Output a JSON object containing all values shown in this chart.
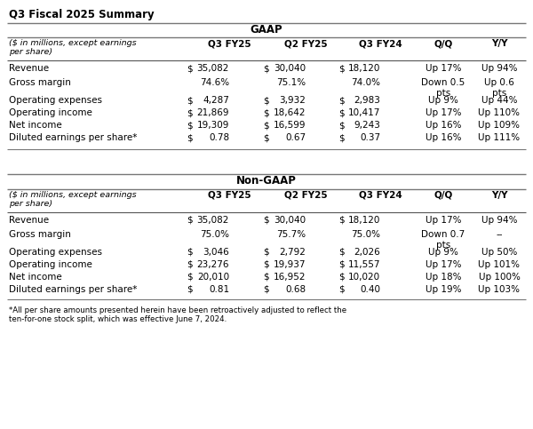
{
  "title": "Q3 Fiscal 2025 Summary",
  "bg_color": "#ffffff",
  "section1_header": "GAAP",
  "section2_header": "Non-GAAP",
  "col_header_italic": "($ in millions, except earnings\nper share)",
  "col_headers": [
    "Q3 FY25",
    "Q2 FY25",
    "Q3 FY24",
    "Q/Q",
    "Y/Y"
  ],
  "gaap_rows": [
    {
      "label": "Revenue",
      "has_dollar": true,
      "vals": [
        "35,082",
        "30,040",
        "18,120"
      ],
      "qoq": "Up 17%",
      "yoy": "Up 94%"
    },
    {
      "label": "Gross margin",
      "has_dollar": false,
      "vals": [
        "74.6%",
        "75.1%",
        "74.0%"
      ],
      "qoq": "Down 0.5\npts",
      "yoy": "Up 0.6\npts"
    },
    {
      "label": "Operating expenses",
      "has_dollar": true,
      "vals": [
        "4,287",
        "3,932",
        "2,983"
      ],
      "qoq": "Up 9%",
      "yoy": "Up 44%"
    },
    {
      "label": "Operating income",
      "has_dollar": true,
      "vals": [
        "21,869",
        "18,642",
        "10,417"
      ],
      "qoq": "Up 17%",
      "yoy": "Up 110%"
    },
    {
      "label": "Net income",
      "has_dollar": true,
      "vals": [
        "19,309",
        "16,599",
        "9,243"
      ],
      "qoq": "Up 16%",
      "yoy": "Up 109%"
    },
    {
      "label": "Diluted earnings per share*",
      "has_dollar": true,
      "vals": [
        "0.78",
        "0.67",
        "0.37"
      ],
      "qoq": "Up 16%",
      "yoy": "Up 111%"
    }
  ],
  "nongaap_rows": [
    {
      "label": "Revenue",
      "has_dollar": true,
      "vals": [
        "35,082",
        "30,040",
        "18,120"
      ],
      "qoq": "Up 17%",
      "yoy": "Up 94%"
    },
    {
      "label": "Gross margin",
      "has_dollar": false,
      "vals": [
        "75.0%",
        "75.7%",
        "75.0%"
      ],
      "qoq": "Down 0.7\npts",
      "yoy": "--"
    },
    {
      "label": "Operating expenses",
      "has_dollar": true,
      "vals": [
        "3,046",
        "2,792",
        "2,026"
      ],
      "qoq": "Up 9%",
      "yoy": "Up 50%"
    },
    {
      "label": "Operating income",
      "has_dollar": true,
      "vals": [
        "23,276",
        "19,937",
        "11,557"
      ],
      "qoq": "Up 17%",
      "yoy": "Up 101%"
    },
    {
      "label": "Net income",
      "has_dollar": true,
      "vals": [
        "20,010",
        "16,952",
        "10,020"
      ],
      "qoq": "Up 18%",
      "yoy": "Up 100%"
    },
    {
      "label": "Diluted earnings per share*",
      "has_dollar": true,
      "vals": [
        "0.81",
        "0.68",
        "0.40"
      ],
      "qoq": "Up 19%",
      "yoy": "Up 103%"
    }
  ],
  "footnote": "*All per share amounts presented herein have been retroactively adjusted to reflect the ten-for-one stock split, which was effective June 7, 2024."
}
